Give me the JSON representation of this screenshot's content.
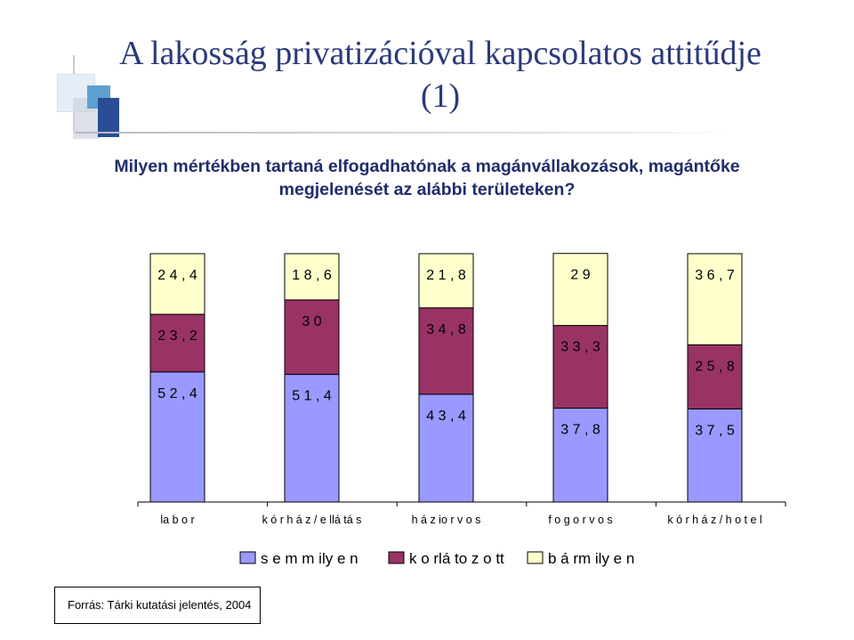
{
  "slide": {
    "title": "A lakosság privatizációval kapcsolatos attitűdje (1)",
    "question": "Milyen mértékben tartaná elfogadhatónak a magánvállakozások, magántőke megjelenését az alábbi területeken?",
    "source": "Forrás: Tárki kutatási jelentés, 2004"
  },
  "chart_data": {
    "type": "bar",
    "stacked": true,
    "percent_stacked": true,
    "categories": [
      "labor",
      "kórház/ellátás",
      "háziorvos",
      "fogorvos",
      "kórház/hotel"
    ],
    "category_labels": [
      "la b o r",
      "k ó r h á z / e llá tá s",
      "h á z io r v o s",
      "f o g o r v o s",
      "k ó r h á z / h o t e l"
    ],
    "series": [
      {
        "name": "semmilyen",
        "label": "s e m m ily e n",
        "color": "#9999ff",
        "values": [
          52.4,
          51.4,
          43.4,
          37.8,
          37.5
        ],
        "labels": [
          "5 2 , 4",
          "5 1 , 4",
          "4 3 , 4",
          "3 7 , 8",
          "3 7 , 5"
        ]
      },
      {
        "name": "korlátozott",
        "label": "k o rlá to z o tt",
        "color": "#993366",
        "values": [
          23.2,
          30,
          34.8,
          33.3,
          25.8
        ],
        "labels": [
          "2 3 , 2",
          "3 0",
          "3 4 , 8",
          "3 3 , 3",
          "2 5 , 8"
        ]
      },
      {
        "name": "bármilyen",
        "label": "b á rm ily e n",
        "color": "#ffffcc",
        "values": [
          24.4,
          18.6,
          21.8,
          29,
          36.7
        ],
        "labels": [
          "2 4 , 4",
          "1 8 , 6",
          "2 1 , 8",
          "2 9",
          "3 6 , 7"
        ]
      }
    ],
    "ylim": [
      0,
      100
    ],
    "grid": false,
    "legend_position": "bottom"
  }
}
